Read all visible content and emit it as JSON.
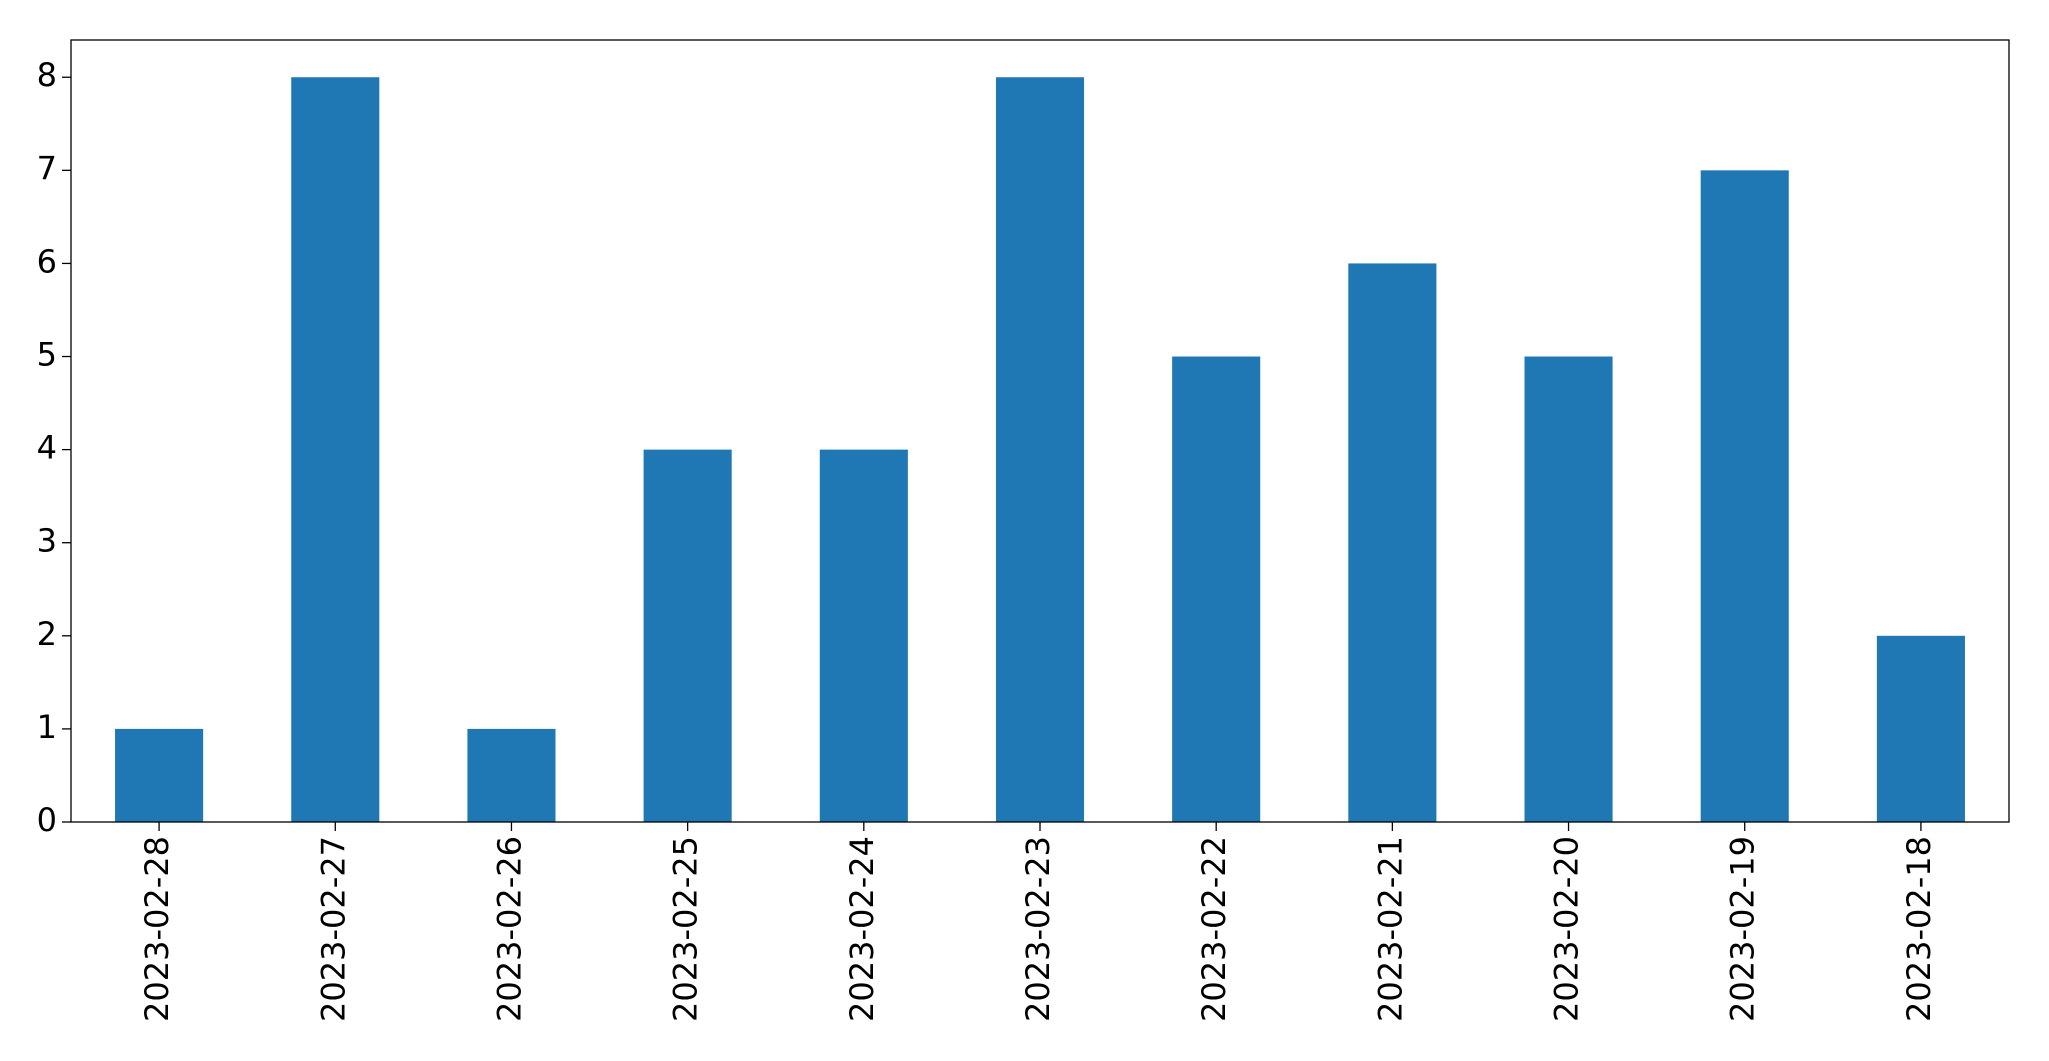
{
  "chart_data": {
    "type": "bar",
    "categories": [
      "2023-02-28",
      "2023-02-27",
      "2023-02-26",
      "2023-02-25",
      "2023-02-24",
      "2023-02-23",
      "2023-02-22",
      "2023-02-21",
      "2023-02-20",
      "2023-02-19",
      "2023-02-18"
    ],
    "values": [
      1,
      8,
      1,
      4,
      4,
      8,
      5,
      6,
      5,
      7,
      2
    ],
    "color": "#1f77b4",
    "ylim": [
      0,
      8.4
    ],
    "yticks": [
      0,
      1,
      2,
      3,
      4,
      5,
      6,
      7,
      8
    ],
    "grid": false
  }
}
